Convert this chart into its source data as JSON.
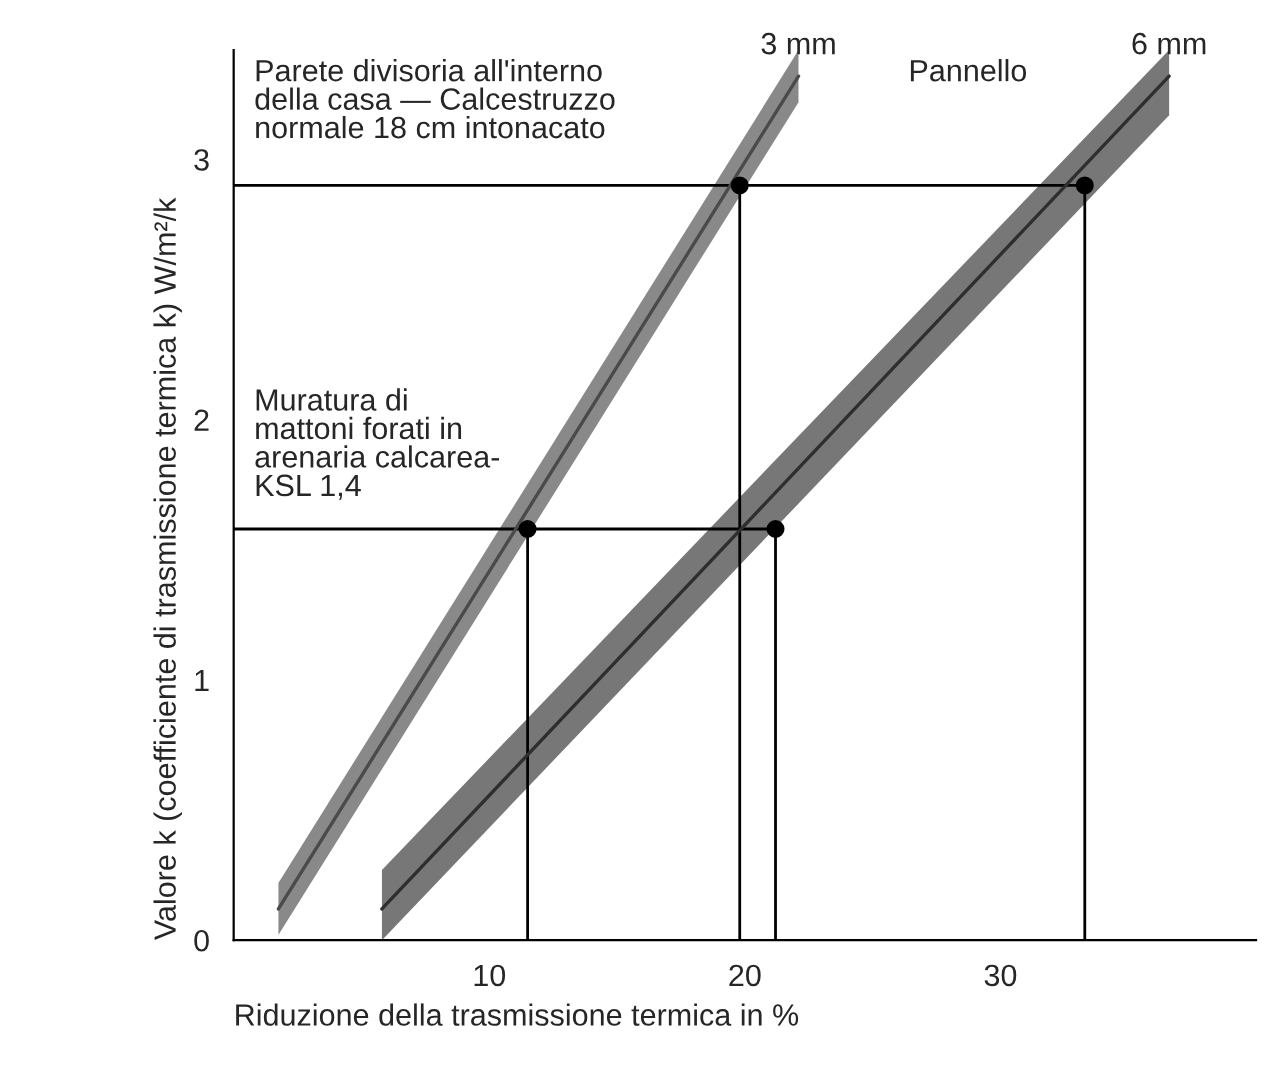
{
  "chart_data": {
    "type": "line",
    "xlabel": "Riduzione della trasmissione termica in %",
    "ylabel": "Valore k (coefficiente di trasmissione termica k) W/m²/k",
    "xlim": [
      0,
      40
    ],
    "ylim": [
      0,
      3.42
    ],
    "xticks": [
      10,
      20,
      30
    ],
    "yticks": [
      0,
      1,
      2,
      3
    ],
    "grid": false,
    "legend": false,
    "series": [
      {
        "name": "3 mm",
        "color": "#4a4a4a",
        "x": [
          1.75,
          22.1
        ],
        "values": [
          0.12,
          3.32
        ],
        "lower": [
          0.02,
          3.22
        ],
        "upper": [
          0.22,
          3.42
        ]
      },
      {
        "name": "6 mm",
        "color": "#2e2e2e",
        "x": [
          5.8,
          36.6
        ],
        "values": [
          0.12,
          3.32
        ],
        "lower": [
          0,
          3.17
        ],
        "upper": [
          0.27,
          3.42
        ]
      },
      {
        "type": "scatter",
        "color": "#000000",
        "marker": "circle",
        "x": [
          11.5,
          19.8,
          21.2,
          33.3
        ],
        "values": [
          1.58,
          2.9,
          1.58,
          2.9
        ]
      }
    ],
    "ref_lines": [
      {
        "axis": "y",
        "value": 2.9,
        "color": "#000000"
      },
      {
        "axis": "y",
        "value": 1.58,
        "color": "#000000"
      },
      {
        "axis": "x",
        "value": 11.5,
        "color": "#000000"
      },
      {
        "axis": "x",
        "value": 19.8,
        "color": "#000000"
      },
      {
        "axis": "x",
        "value": 21.2,
        "color": "#000000"
      },
      {
        "axis": "x",
        "value": 33.3,
        "color": "#000000"
      }
    ],
    "annotations": [
      "Parete divisoria all'interno\ndella casa — Calcestruzzo\nnormale 18 cm intonacato",
      "Muratura di\nmattoni forati in\narenaria calcarea-\nKSL 1,4",
      "Pannello"
    ]
  }
}
